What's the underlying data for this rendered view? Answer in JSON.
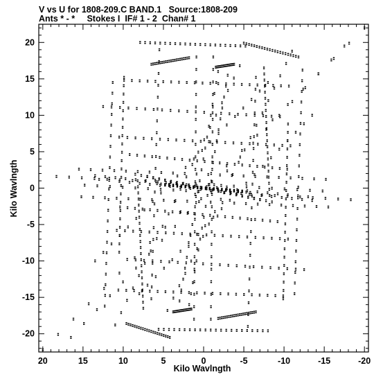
{
  "header": {
    "title_line1": "V vs U for 1808-209.C BAND.1   Source:1808-209",
    "title_line2": "Ants * - *     Stokes I  IF# 1 - 2  Chan# 1"
  },
  "chart_data": {
    "type": "scatter",
    "title": "V vs U for 1808-209.C BAND.1   Source:1808-209",
    "subtitle": "Ants * - *     Stokes I  IF# 1 - 2  Chan# 1",
    "xlabel": "Kilo Wavlngth",
    "ylabel": "Kilo Wavlngth",
    "xlim": [
      20.5,
      -20.5
    ],
    "ylim": [
      -22.5,
      22.5
    ],
    "xticks": [
      20,
      15,
      10,
      5,
      0,
      -5,
      -10,
      -15,
      -20
    ],
    "yticks": [
      20,
      15,
      10,
      5,
      0,
      -5,
      -10,
      -15,
      -20
    ],
    "grid": false,
    "tracks": [
      {
        "x": [
          7.9,
          -5.2
        ],
        "y": [
          20.0,
          19.5
        ]
      },
      {
        "x": [
          -8.0,
          5.6
        ],
        "y": [
          -19.6,
          -19.4
        ]
      },
      {
        "x": [
          -5.0,
          -11.8
        ],
        "y": [
          19.9,
          18.0
        ]
      },
      {
        "x": [
          9.6,
          4.2
        ],
        "y": [
          -18.6,
          -20.5
        ]
      },
      {
        "x": [
          6.5,
          1.8
        ],
        "y": [
          17.0,
          17.9
        ]
      },
      {
        "x": [
          -1.5,
          -3.8
        ],
        "y": [
          16.6,
          17.0
        ]
      },
      {
        "x": [
          -6.5,
          -1.8
        ],
        "y": [
          -17.0,
          -17.9
        ]
      },
      {
        "x": [
          1.5,
          3.8
        ],
        "y": [
          -16.6,
          -17.0
        ]
      },
      {
        "x": [
          9.9,
          -10.6
        ],
        "y": [
          14.8,
          14.0
        ]
      },
      {
        "x": [
          -9.9,
          10.6
        ],
        "y": [
          -14.8,
          -14.0
        ]
      },
      {
        "x": [
          12.5,
          -9.5
        ],
        "y": [
          11.2,
          9.8
        ]
      },
      {
        "x": [
          -12.5,
          9.5
        ],
        "y": [
          -11.2,
          -9.8
        ]
      },
      {
        "x": [
          10.5,
          -10.8
        ],
        "y": [
          7.0,
          5.8
        ]
      },
      {
        "x": [
          -10.5,
          10.8
        ],
        "y": [
          -7.0,
          -5.8
        ]
      },
      {
        "x": [
          9.2,
          -10.4
        ],
        "y": [
          4.6,
          2.6
        ]
      },
      {
        "x": [
          -9.2,
          10.4
        ],
        "y": [
          -4.6,
          -2.6
        ]
      },
      {
        "x": [
          15.5,
          -15.2
        ],
        "y": [
          2.6,
          1.2
        ]
      },
      {
        "x": [
          -15.5,
          15.2
        ],
        "y": [
          -2.6,
          -1.2
        ]
      },
      {
        "x": [
          18.3,
          -14.8
        ],
        "y": [
          1.6,
          -0.4
        ]
      },
      {
        "x": [
          -18.3,
          14.8
        ],
        "y": [
          -1.6,
          0.4
        ]
      },
      {
        "x": [
          13.0,
          -13.5
        ],
        "y": [
          1.2,
          -1.7
        ]
      },
      {
        "x": [
          -13.0,
          13.5
        ],
        "y": [
          -1.2,
          1.7
        ]
      },
      {
        "x": [
          8.5,
          -7.0
        ],
        "y": [
          1.9,
          -1.6
        ]
      },
      {
        "x": [
          -8.5,
          7.0
        ],
        "y": [
          -1.9,
          1.6
        ]
      },
      {
        "x": [
          5.8,
          -4.8
        ],
        "y": [
          0.6,
          -0.4
        ]
      },
      {
        "x": [
          -5.8,
          4.8
        ],
        "y": [
          -0.6,
          0.4
        ]
      },
      {
        "x": [
          12.3,
          11.3
        ],
        "y": [
          -16.2,
          14.5
        ]
      },
      {
        "x": [
          -12.3,
          -11.3
        ],
        "y": [
          16.2,
          -14.5
        ]
      },
      {
        "x": [
          10.5,
          9.9
        ],
        "y": [
          -8.8,
          15.2
        ]
      },
      {
        "x": [
          -10.5,
          -9.9
        ],
        "y": [
          8.8,
          -15.2
        ]
      },
      {
        "x": [
          6.5,
          5.5
        ],
        "y": [
          -15.2,
          19.0
        ]
      },
      {
        "x": [
          -6.5,
          -5.5
        ],
        "y": [
          15.2,
          -19.0
        ]
      },
      {
        "x": [
          1.2,
          0.9
        ],
        "y": [
          -18.0,
          18.0
        ]
      },
      {
        "x": [
          -1.2,
          -0.9
        ],
        "y": [
          18.0,
          -18.0
        ]
      },
      {
        "x": [
          3.0,
          -1.8
        ],
        "y": [
          -15.5,
          16.0
        ]
      },
      {
        "x": [
          -3.0,
          1.8
        ],
        "y": [
          15.5,
          -16.0
        ]
      },
      {
        "x": [
          4.5,
          -11.0
        ],
        "y": [
          -16.8,
          18.8
        ]
      },
      {
        "x": [
          -4.5,
          11.0
        ],
        "y": [
          16.8,
          -18.8
        ]
      },
      {
        "x": [
          20.0,
          -20.0
        ],
        "y": [
          -22.2,
          22.0
        ]
      },
      {
        "x": [
          16.5,
          -17.5
        ],
        "y": [
          -20.5,
          19.5
        ]
      },
      {
        "x": [
          13.5,
          -8.0
        ],
        "y": [
          -10.0,
          14.5
        ]
      },
      {
        "x": [
          -13.5,
          8.0
        ],
        "y": [
          10.0,
          -14.5
        ]
      },
      {
        "x": [
          -7.5,
          -8.2
        ],
        "y": [
          16.5,
          -1.0
        ]
      },
      {
        "x": [
          7.5,
          8.2
        ],
        "y": [
          -16.5,
          1.0
        ]
      }
    ],
    "points_per_track": 22
  }
}
